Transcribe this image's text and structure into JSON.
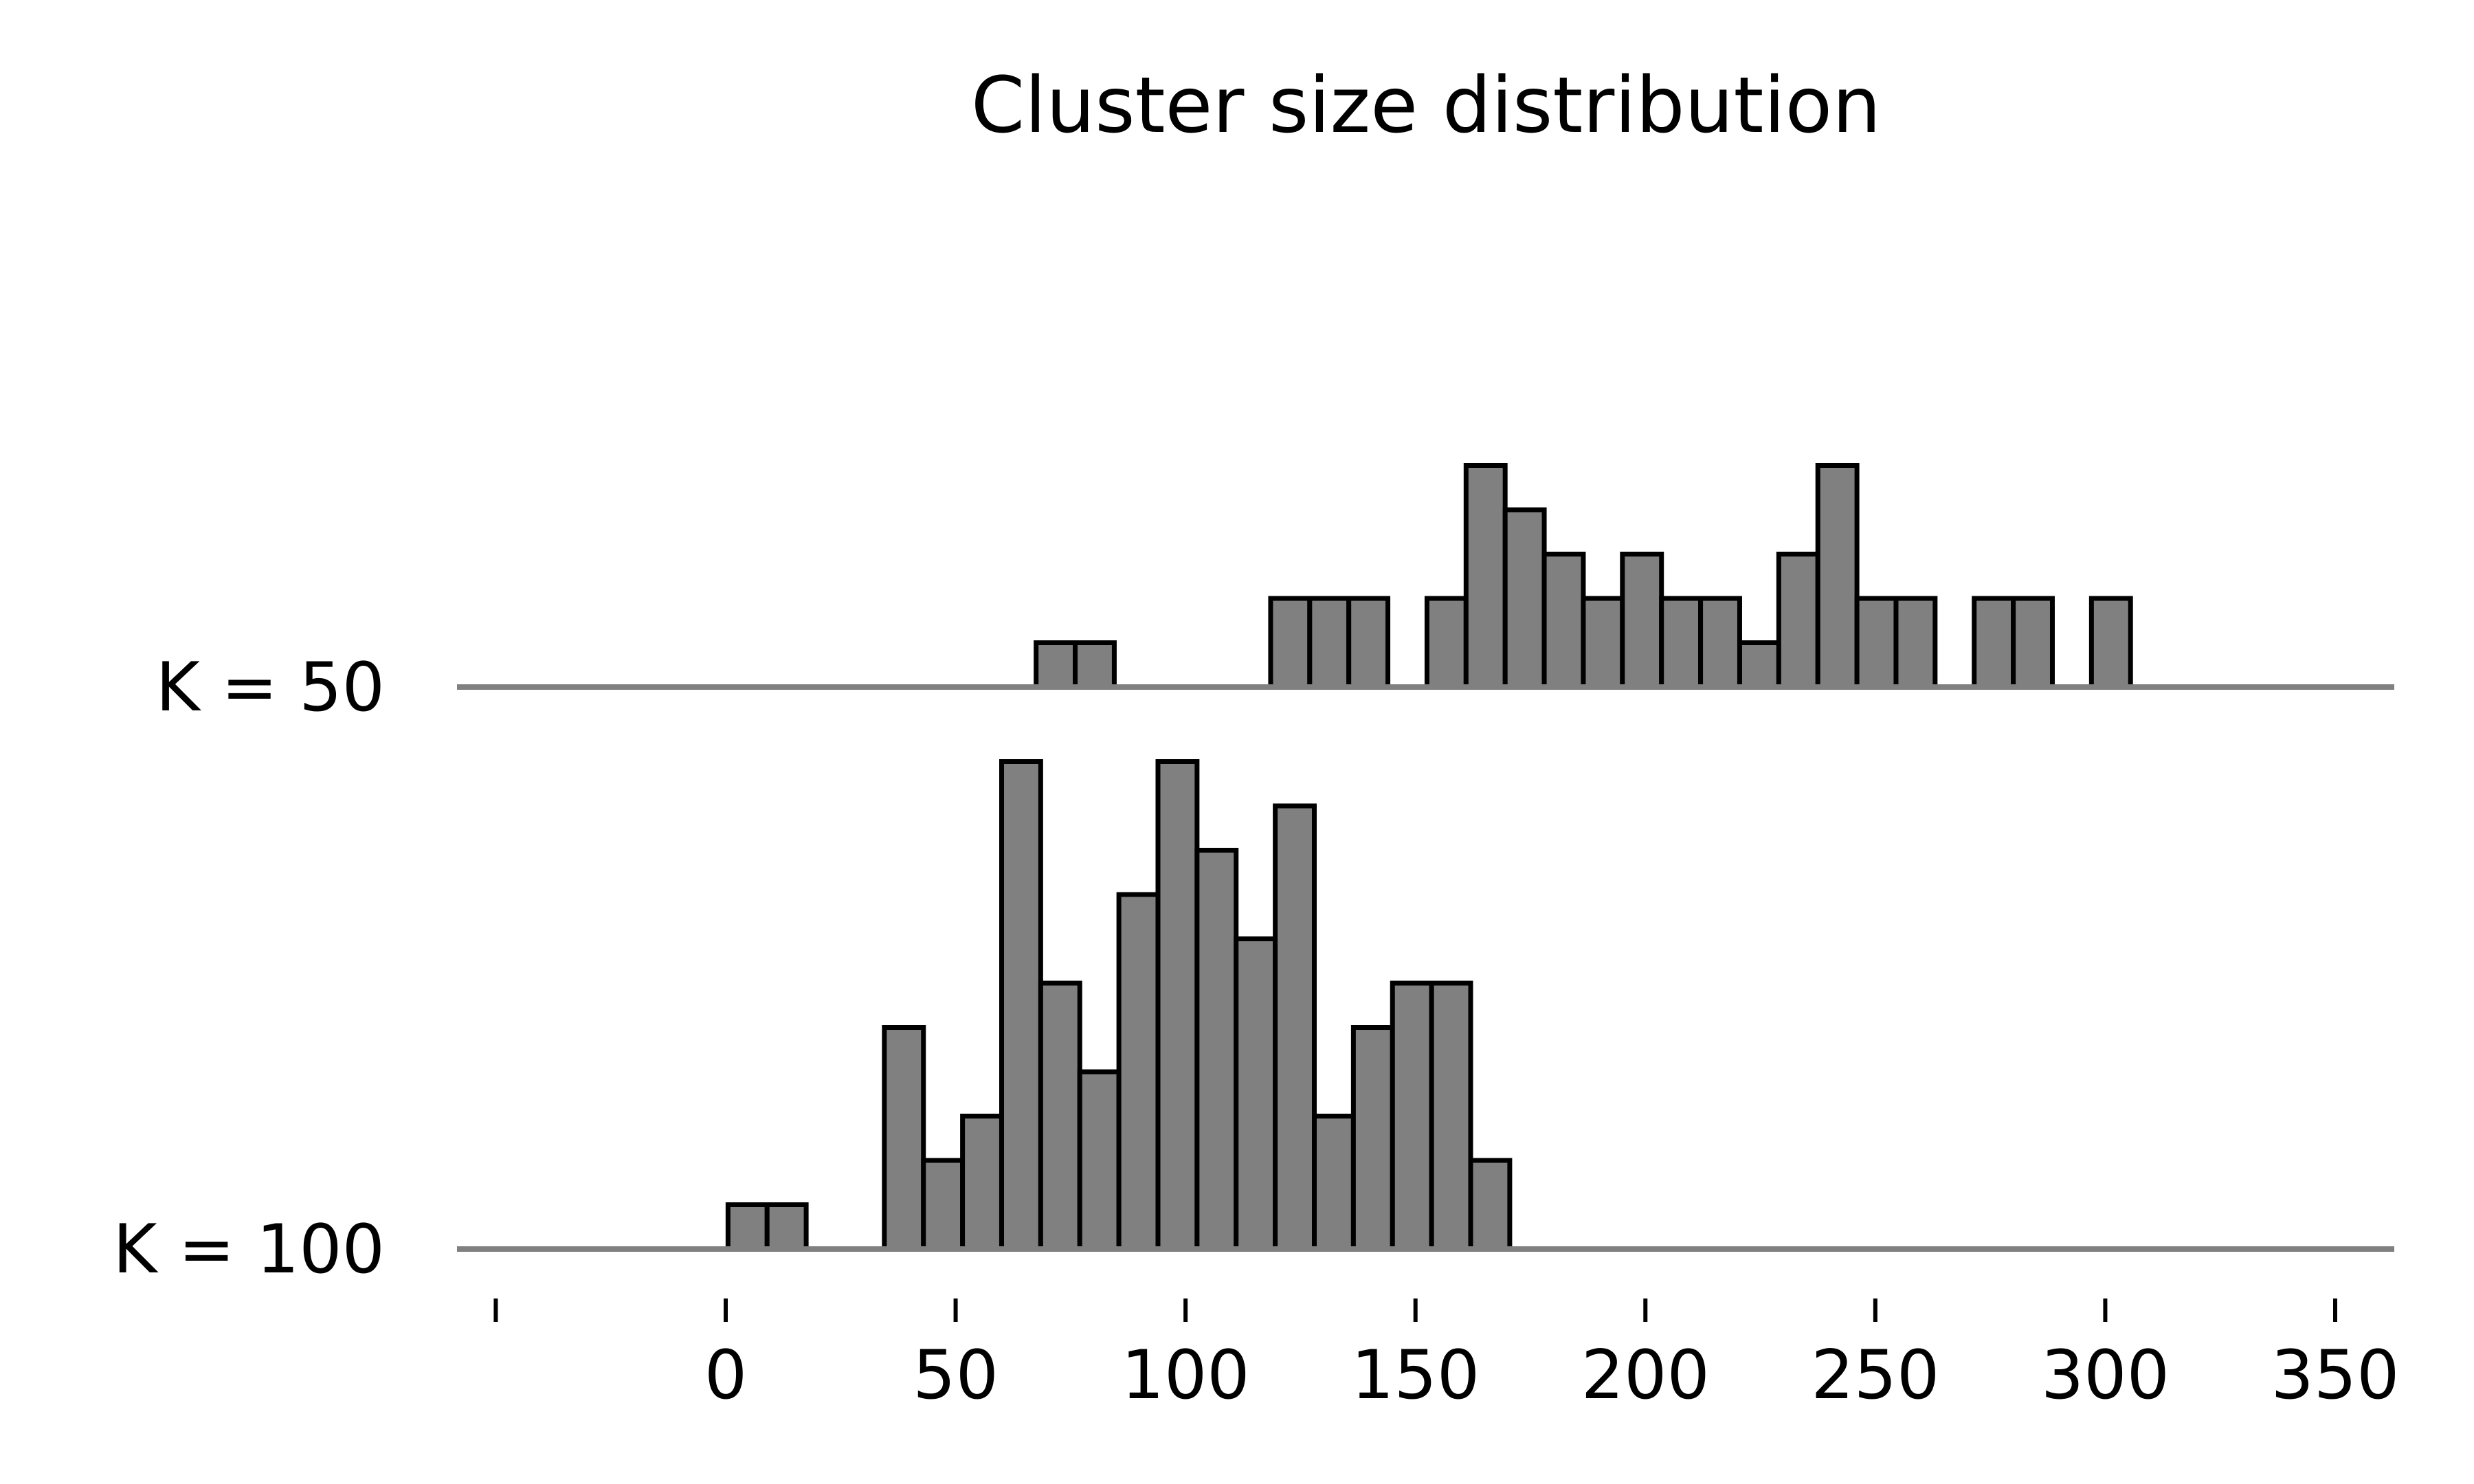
{
  "chart_data": {
    "type": "bar",
    "title": "Cluster size distribution",
    "xlabel": "",
    "ylabel": "",
    "xlim": [
      -50,
      362
    ],
    "x_ticks": [
      0,
      50,
      100,
      150,
      200,
      250,
      300,
      350
    ],
    "bin_width": 8.5,
    "grid": false,
    "colors": {
      "bar_fill": "#808080",
      "bar_edge": "#000000",
      "baseline": "#808080"
    },
    "series": [
      {
        "name": "K = 50",
        "bins": [
          {
            "x": 67.5,
            "value": 1
          },
          {
            "x": 76.0,
            "value": 1
          },
          {
            "x": 118.5,
            "value": 2
          },
          {
            "x": 127.0,
            "value": 2
          },
          {
            "x": 135.5,
            "value": 2
          },
          {
            "x": 152.5,
            "value": 2
          },
          {
            "x": 161.0,
            "value": 5
          },
          {
            "x": 169.5,
            "value": 4
          },
          {
            "x": 178.0,
            "value": 3
          },
          {
            "x": 186.5,
            "value": 2
          },
          {
            "x": 195.0,
            "value": 3
          },
          {
            "x": 203.5,
            "value": 2
          },
          {
            "x": 212.0,
            "value": 2
          },
          {
            "x": 220.5,
            "value": 1
          },
          {
            "x": 229.0,
            "value": 3
          },
          {
            "x": 237.5,
            "value": 5
          },
          {
            "x": 246.0,
            "value": 2
          },
          {
            "x": 254.5,
            "value": 2
          },
          {
            "x": 271.5,
            "value": 2
          },
          {
            "x": 280.0,
            "value": 2
          },
          {
            "x": 297.0,
            "value": 2
          }
        ]
      },
      {
        "name": "K = 100",
        "bins": [
          {
            "x": 0.5,
            "value": 1
          },
          {
            "x": 9.0,
            "value": 1
          },
          {
            "x": 34.5,
            "value": 5
          },
          {
            "x": 43.0,
            "value": 2
          },
          {
            "x": 51.5,
            "value": 3
          },
          {
            "x": 60.0,
            "value": 11
          },
          {
            "x": 68.5,
            "value": 6
          },
          {
            "x": 77.0,
            "value": 4
          },
          {
            "x": 85.5,
            "value": 8
          },
          {
            "x": 94.0,
            "value": 11
          },
          {
            "x": 102.5,
            "value": 9
          },
          {
            "x": 111.0,
            "value": 7
          },
          {
            "x": 119.5,
            "value": 10
          },
          {
            "x": 128.0,
            "value": 3
          },
          {
            "x": 136.5,
            "value": 5
          },
          {
            "x": 145.0,
            "value": 6
          },
          {
            "x": 153.5,
            "value": 6
          },
          {
            "x": 162.0,
            "value": 2
          }
        ]
      }
    ]
  }
}
